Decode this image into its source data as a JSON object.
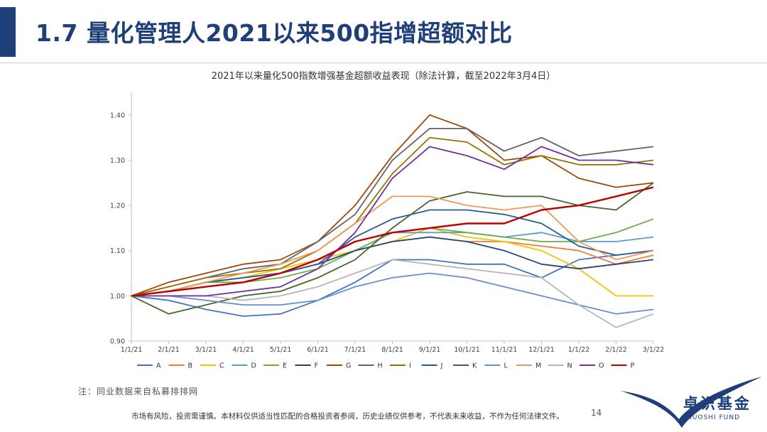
{
  "header": {
    "title": "1.7 量化管理人2021以来500指增超额对比",
    "accent_color": "#1f3f7a"
  },
  "chart_data": {
    "type": "line",
    "title": "2021年以来量化500指数增强基金超额收益表现（除法计算，截至2022年3月4日）",
    "xlabel": "",
    "ylabel": "",
    "ylim": [
      0.9,
      1.45
    ],
    "yticks": [
      "0.90",
      "1.00",
      "1.10",
      "1.20",
      "1.30",
      "1.40"
    ],
    "x": [
      "1/1/21",
      "2/1/21",
      "3/1/21",
      "4/1/21",
      "5/1/21",
      "6/1/21",
      "7/1/21",
      "8/1/21",
      "9/1/21",
      "10/1/21",
      "11/1/21",
      "12/1/21",
      "1/1/22",
      "2/1/22",
      "3/1/22"
    ],
    "legend_position": "bottom",
    "grid": false,
    "series": [
      {
        "name": "A",
        "color": "#4472c4",
        "values": [
          1.0,
          0.99,
          0.97,
          0.955,
          0.96,
          0.99,
          1.03,
          1.08,
          1.08,
          1.07,
          1.07,
          1.04,
          1.08,
          1.09,
          1.1
        ]
      },
      {
        "name": "B",
        "color": "#ed7d31",
        "values": [
          1.0,
          1.01,
          1.03,
          1.04,
          1.05,
          1.07,
          1.1,
          1.12,
          1.13,
          1.12,
          1.12,
          1.11,
          1.1,
          1.07,
          1.09
        ]
      },
      {
        "name": "C",
        "color": "#f5c400",
        "values": [
          1.0,
          1.01,
          1.03,
          1.04,
          1.06,
          1.08,
          1.1,
          1.12,
          1.15,
          1.13,
          1.12,
          1.1,
          1.06,
          1.0,
          1.0
        ]
      },
      {
        "name": "D",
        "color": "#5b9bd5",
        "values": [
          1.0,
          1.01,
          1.03,
          1.04,
          1.05,
          1.07,
          1.1,
          1.14,
          1.14,
          1.14,
          1.13,
          1.14,
          1.12,
          1.12,
          1.13
        ]
      },
      {
        "name": "E",
        "color": "#70ad47",
        "values": [
          1.0,
          1.01,
          1.03,
          1.03,
          1.04,
          1.06,
          1.1,
          1.14,
          1.15,
          1.14,
          1.13,
          1.12,
          1.12,
          1.14,
          1.17
        ]
      },
      {
        "name": "F",
        "color": "#264478",
        "values": [
          1.0,
          1.01,
          1.02,
          1.03,
          1.05,
          1.07,
          1.1,
          1.12,
          1.13,
          1.12,
          1.1,
          1.07,
          1.06,
          1.07,
          1.08
        ]
      },
      {
        "name": "G",
        "color": "#9e480e",
        "values": [
          1.0,
          1.03,
          1.05,
          1.07,
          1.08,
          1.12,
          1.2,
          1.31,
          1.4,
          1.37,
          1.3,
          1.31,
          1.26,
          1.24,
          1.25
        ]
      },
      {
        "name": "H",
        "color": "#636363",
        "values": [
          1.0,
          1.02,
          1.04,
          1.06,
          1.07,
          1.12,
          1.18,
          1.3,
          1.37,
          1.37,
          1.32,
          1.35,
          1.31,
          1.32,
          1.33
        ]
      },
      {
        "name": "I",
        "color": "#997300",
        "values": [
          1.0,
          1.02,
          1.04,
          1.05,
          1.06,
          1.1,
          1.16,
          1.27,
          1.35,
          1.34,
          1.29,
          1.31,
          1.29,
          1.29,
          1.3
        ]
      },
      {
        "name": "J",
        "color": "#255e91",
        "values": [
          1.0,
          1.01,
          1.03,
          1.04,
          1.05,
          1.07,
          1.13,
          1.17,
          1.19,
          1.19,
          1.18,
          1.16,
          1.11,
          1.09,
          1.1
        ]
      },
      {
        "name": "K",
        "color": "#43682b",
        "values": [
          1.0,
          0.96,
          0.98,
          1.0,
          1.01,
          1.04,
          1.08,
          1.15,
          1.21,
          1.23,
          1.22,
          1.22,
          1.2,
          1.19,
          1.25
        ]
      },
      {
        "name": "L",
        "color": "#698ed0",
        "values": [
          1.0,
          1.0,
          0.99,
          0.98,
          0.98,
          0.99,
          1.02,
          1.04,
          1.05,
          1.04,
          1.02,
          1.0,
          0.98,
          0.96,
          0.97
        ]
      },
      {
        "name": "M",
        "color": "#f1975a",
        "values": [
          1.0,
          1.01,
          1.03,
          1.05,
          1.07,
          1.1,
          1.16,
          1.22,
          1.22,
          1.2,
          1.19,
          1.2,
          1.12,
          1.08,
          1.1
        ]
      },
      {
        "name": "N",
        "color": "#b7b7b7",
        "values": [
          1.0,
          1.0,
          1.0,
          0.99,
          1.0,
          1.02,
          1.05,
          1.08,
          1.07,
          1.06,
          1.05,
          1.04,
          0.98,
          0.93,
          0.96
        ]
      },
      {
        "name": "O",
        "color": "#7030a0",
        "values": [
          1.0,
          1.0,
          1.0,
          1.01,
          1.02,
          1.06,
          1.14,
          1.26,
          1.33,
          1.31,
          1.28,
          1.33,
          1.3,
          1.3,
          1.29
        ]
      },
      {
        "name": "P",
        "color": "#c00000",
        "values": [
          1.0,
          1.01,
          1.02,
          1.03,
          1.05,
          1.08,
          1.12,
          1.14,
          1.15,
          1.16,
          1.16,
          1.19,
          1.2,
          1.22,
          1.24
        ]
      }
    ]
  },
  "footer": {
    "note": "注：同业数据来自私募排排网",
    "disclaimer": "市场有风险，投资需谨慎。本材料仅供适当性匹配的合格投资者参阅，历史业绩仅供参考，不代表未来收益，不作为任何法律文件。",
    "page_number": "14",
    "logo_cn": "卓识基金",
    "logo_en": "ZHUOSHI FUND"
  }
}
